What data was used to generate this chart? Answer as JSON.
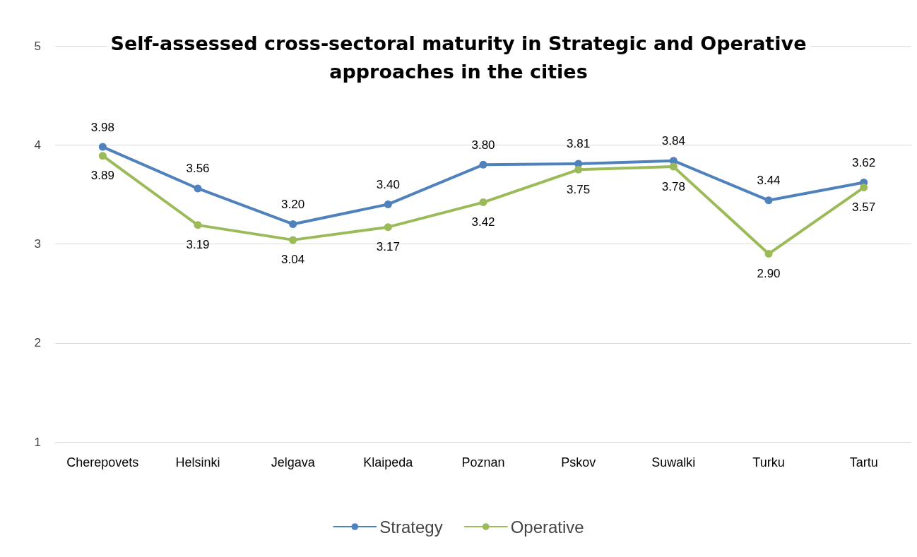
{
  "chart_data": {
    "type": "line",
    "title": "Self-assessed cross-sectoral maturity in Strategic and Operative\napproaches in the cities",
    "categories": [
      "Cherepovets",
      "Helsinki",
      "Jelgava",
      "Klaipeda",
      "Poznan",
      "Pskov",
      "Suwalki",
      "Turku",
      "Tartu"
    ],
    "series": [
      {
        "name": "Strategy",
        "color": "#4f81bd",
        "values": [
          3.98,
          3.56,
          3.2,
          3.4,
          3.8,
          3.81,
          3.84,
          3.44,
          3.62
        ],
        "value_labels": [
          "3.98",
          "3.56",
          "3.20",
          "3.40",
          "3.80",
          "3.81",
          "3.84",
          "3.44",
          "3.62"
        ]
      },
      {
        "name": "Operative",
        "color": "#9bbb59",
        "values": [
          3.89,
          3.19,
          3.04,
          3.17,
          3.42,
          3.75,
          3.78,
          2.9,
          3.57
        ],
        "value_labels": [
          "3.89",
          "3.19",
          "3.04",
          "3.17",
          "3.42",
          "3.75",
          "3.78",
          "2.90",
          "3.57"
        ]
      }
    ],
    "ylim": [
      1,
      5
    ],
    "yticks": [
      1,
      2,
      3,
      4,
      5
    ],
    "grid": "y",
    "legend": "bottom",
    "marker": "circle",
    "line_style": "solid"
  }
}
